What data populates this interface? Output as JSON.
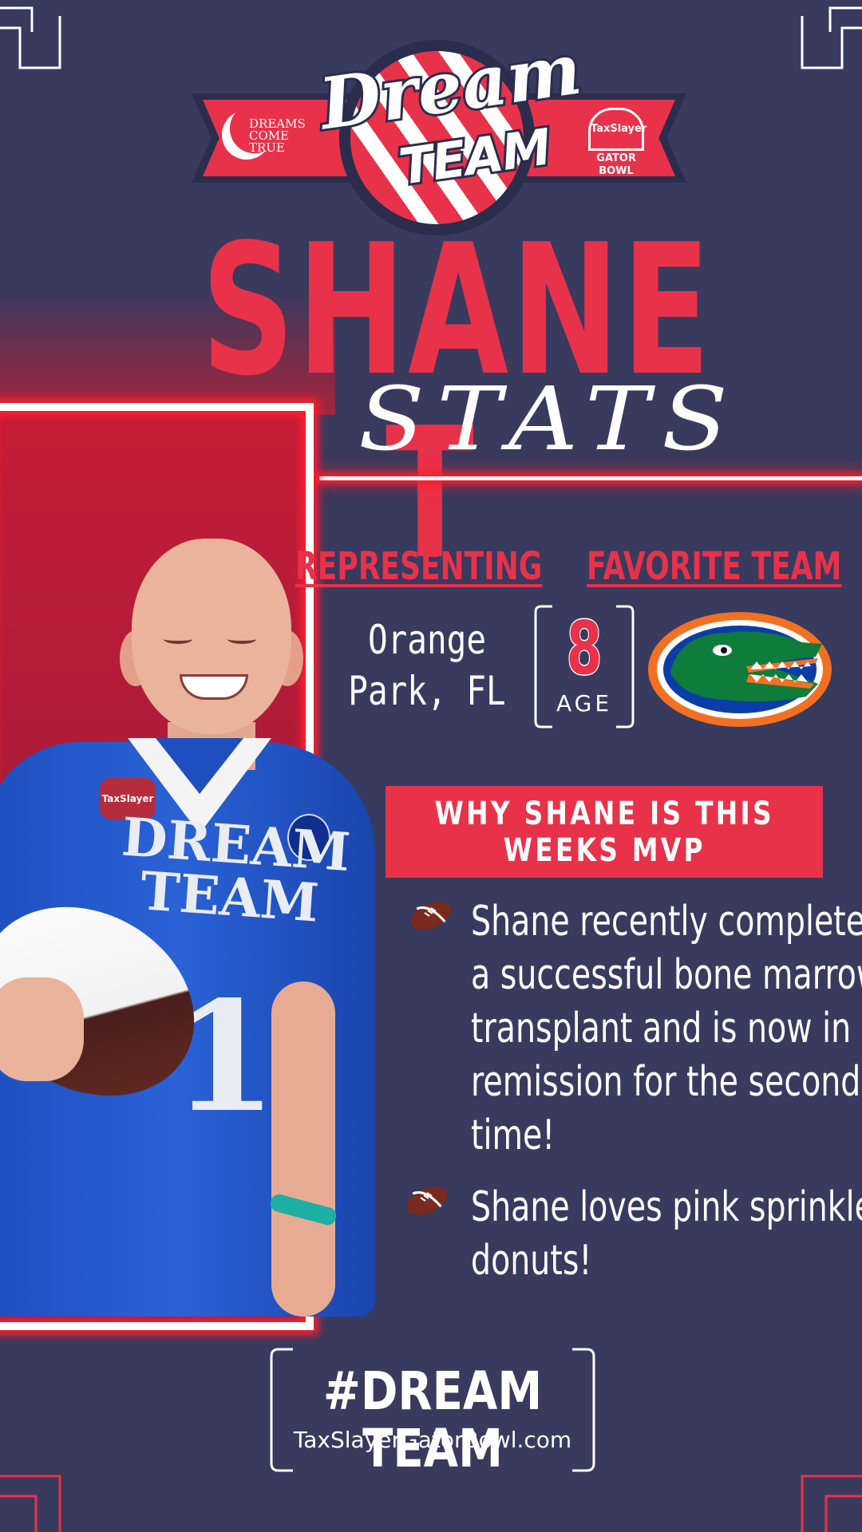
{
  "logo": {
    "dream_word": "Dream",
    "team_word": "TEAM",
    "left_badge_text": "DREAMS COME TRUE",
    "right_badge_line1": "TaxSlayer",
    "right_badge_line2": "GATOR BOWL"
  },
  "title": {
    "name": "SHANE T",
    "subtitle": "STATS"
  },
  "info": {
    "representing_label": "REPRESENTING",
    "location": "Orange Park, FL",
    "age_value": "8",
    "age_label": "AGE",
    "favorite_team_label": "FAVORITE TEAM",
    "favorite_team_icon": "florida-gators-logo"
  },
  "mvp": {
    "heading": "WHY SHANE  IS THIS\nWEEKS MVP",
    "bullets": [
      "Shane recently completed a successful bone marrow transplant and is now in remission for the second time!",
      "Shane loves pink sprinkle donuts!"
    ],
    "bullet_icon": "football-icon"
  },
  "photo": {
    "jersey_line1": "DREAM",
    "jersey_line2": "TEAM",
    "jersey_number": "1",
    "patch_text": "TaxSlayer"
  },
  "footer": {
    "hashtag": "#DREAM TEAM",
    "website": "TaxSlayerGatorBowl.com"
  },
  "colors": {
    "background": "#383a5e",
    "accent_red": "#e8324a",
    "glow_red": "#ff1d2e",
    "white": "#ffffff"
  }
}
